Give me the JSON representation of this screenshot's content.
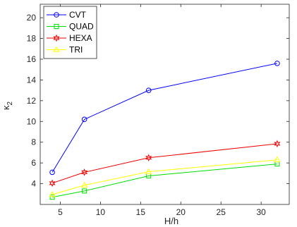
{
  "chart_data": {
    "type": "line",
    "xlabel": "H/h",
    "ylabel": "κ",
    "ylabel_subscript": "2",
    "xlim": [
      2.5,
      33.5
    ],
    "ylim": [
      2,
      21.3
    ],
    "xticks": [
      5,
      10,
      15,
      20,
      25,
      30
    ],
    "yticks": [
      4,
      6,
      8,
      10,
      12,
      14,
      16,
      18,
      20
    ],
    "grid": false,
    "legend_position": "top-left",
    "x": [
      4,
      8,
      16,
      32
    ],
    "series": [
      {
        "name": "CVT",
        "values": [
          5.1,
          10.2,
          13.0,
          15.6
        ],
        "color": "#0000ff",
        "marker": "circle"
      },
      {
        "name": "QUAD",
        "values": [
          2.7,
          3.3,
          4.75,
          5.9
        ],
        "color": "#00dd00",
        "marker": "square"
      },
      {
        "name": "HEXA",
        "values": [
          4.05,
          5.1,
          6.5,
          7.85
        ],
        "color": "#ee0000",
        "marker": "hexagram"
      },
      {
        "name": "TRI",
        "values": [
          2.95,
          3.85,
          5.15,
          6.3
        ],
        "color": "#ffff00",
        "marker": "triangle"
      }
    ]
  }
}
